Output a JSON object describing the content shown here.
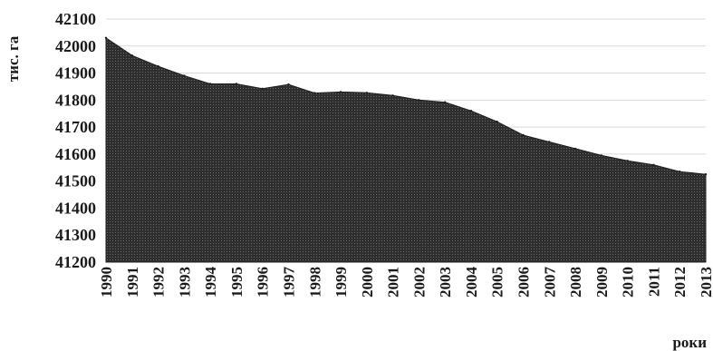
{
  "chart_data": {
    "type": "area",
    "title": "",
    "ylabel": "тис. га",
    "xlabel": "роки",
    "ylim": [
      41200,
      42100
    ],
    "yticks": [
      "41200",
      "41300",
      "41400",
      "41500",
      "41600",
      "41700",
      "41800",
      "41900",
      "42000",
      "42100"
    ],
    "grid": true,
    "categories": [
      "1990",
      "1991",
      "1992",
      "1993",
      "1994",
      "1995",
      "1996",
      "1997",
      "1998",
      "1999",
      "2000",
      "2001",
      "2002",
      "2003",
      "2004",
      "2005",
      "2006",
      "2007",
      "2008",
      "2009",
      "2010",
      "2011",
      "2012",
      "2013"
    ],
    "values": [
      42030,
      41965,
      41925,
      41890,
      41860,
      41860,
      41842,
      41858,
      41826,
      41830,
      41827,
      41817,
      41800,
      41792,
      41760,
      41720,
      41670,
      41645,
      41620,
      41595,
      41575,
      41560,
      41535,
      41525
    ],
    "fill_color": "#3a3a3a"
  }
}
